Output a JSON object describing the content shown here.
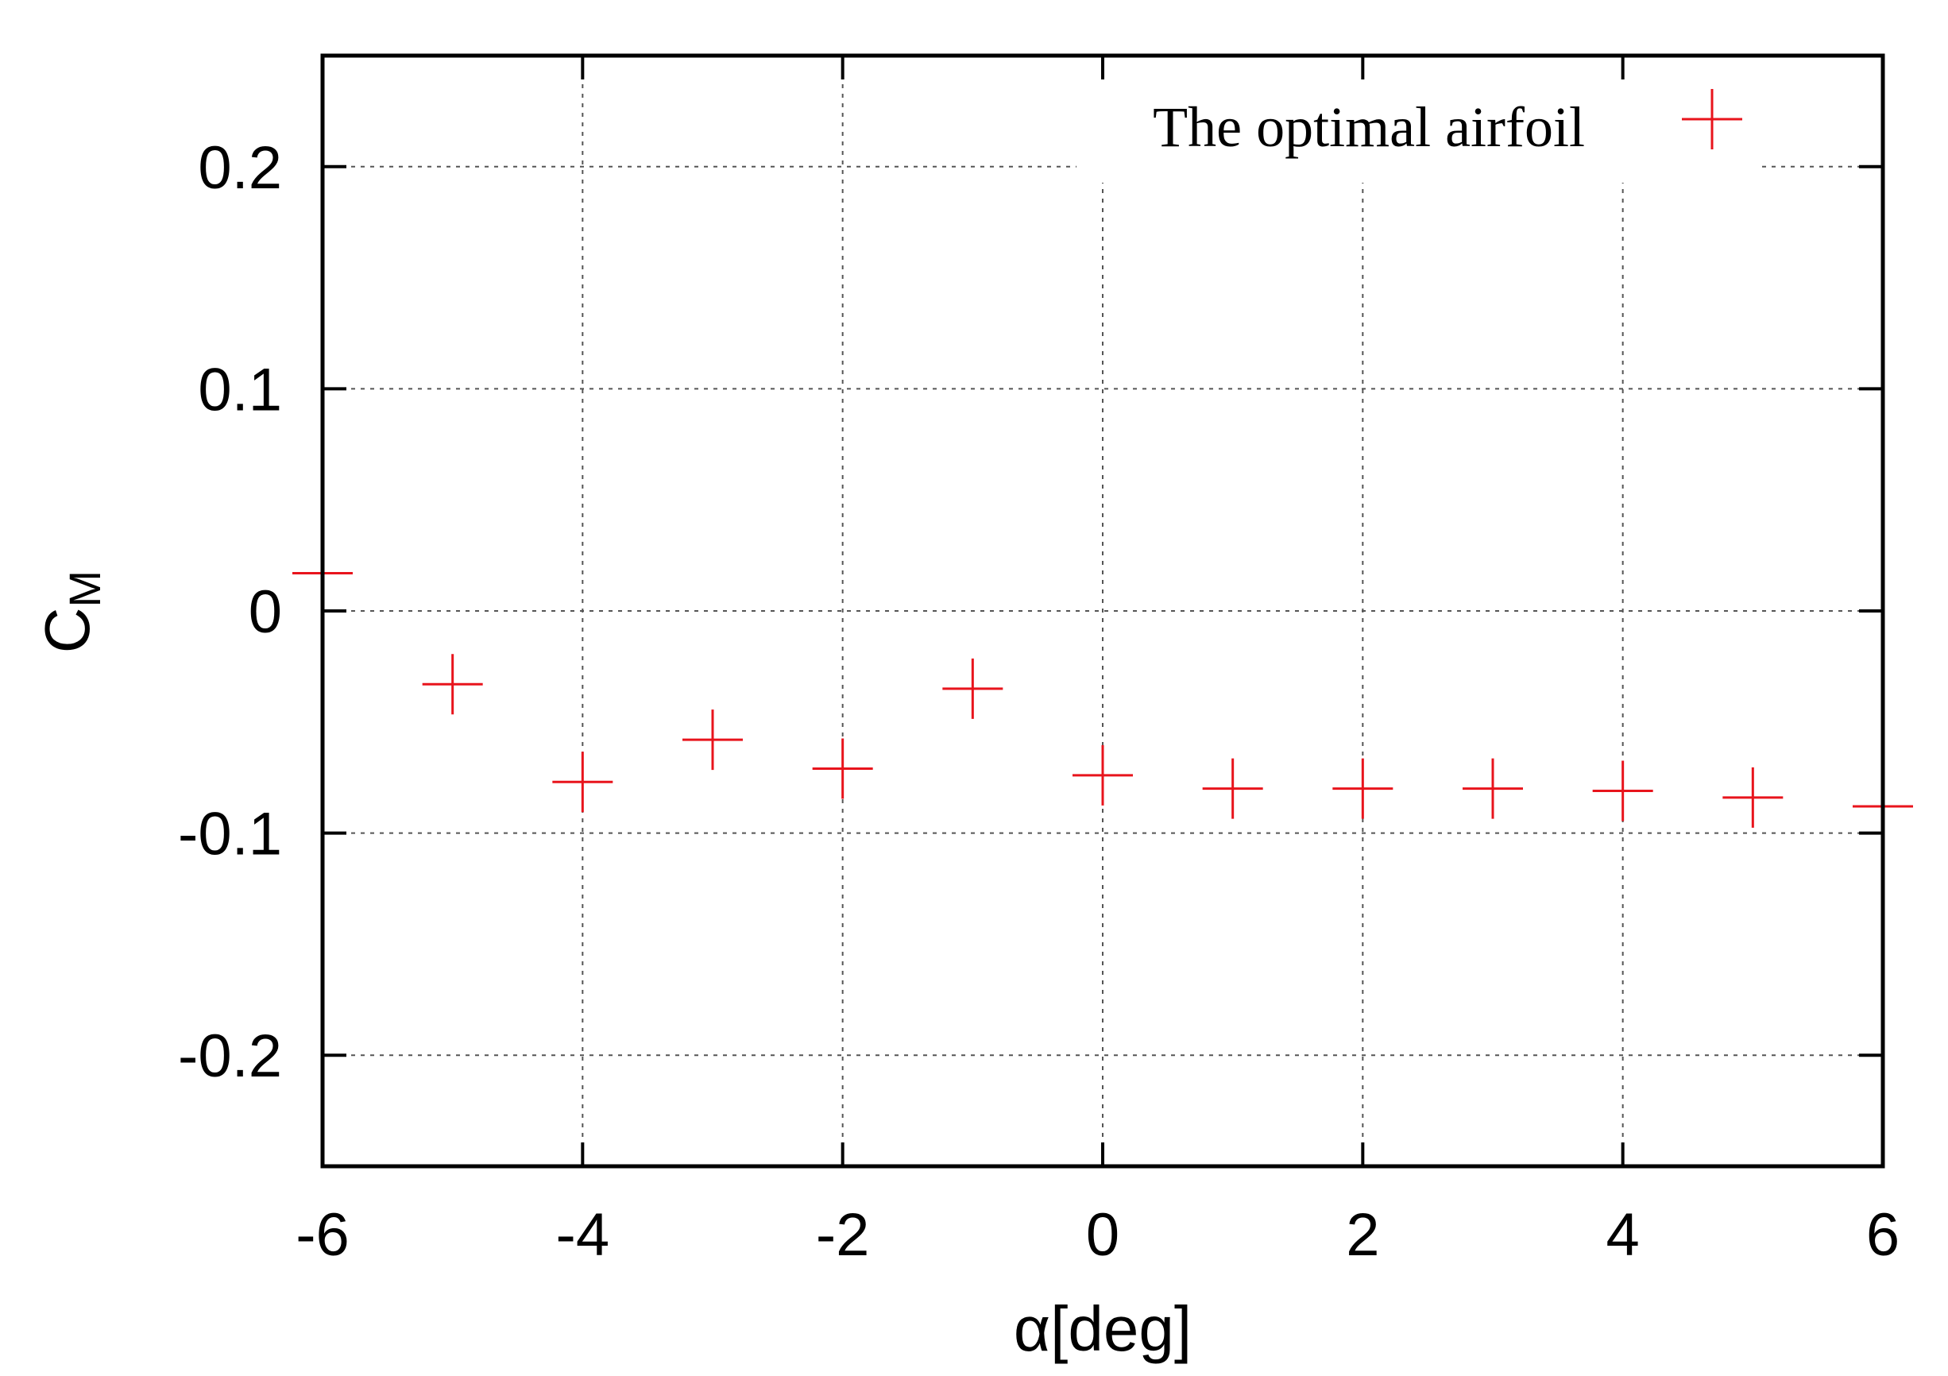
{
  "chart_data": {
    "type": "scatter",
    "xlabel": "α[deg]",
    "ylabel": {
      "main": "C",
      "subscript": "M"
    },
    "xlim": [
      -6,
      6
    ],
    "ylim": [
      -0.25,
      0.25
    ],
    "xticks": [
      -6,
      -4,
      -2,
      0,
      2,
      4,
      6
    ],
    "xtick_labels": [
      "-6",
      "-4",
      "-2",
      "0",
      "2",
      "4",
      "6"
    ],
    "yticks": [
      0.2,
      0.1,
      0,
      -0.1,
      -0.2
    ],
    "ytick_labels": [
      "0.2",
      "0.1",
      "0",
      "-0.1",
      "-0.2"
    ],
    "grid": true,
    "legend_position": "top-right",
    "series": [
      {
        "name": "The optimal airfoil",
        "marker": "plus",
        "color": "#e8141c",
        "x": [
          -6,
          -5,
          -4,
          -3,
          -2,
          -1,
          0,
          1,
          2,
          3,
          4,
          5,
          6
        ],
        "y": [
          0.017,
          -0.033,
          -0.077,
          -0.058,
          -0.071,
          -0.035,
          -0.074,
          -0.08,
          -0.08,
          -0.08,
          -0.081,
          -0.084,
          -0.088
        ]
      }
    ]
  }
}
